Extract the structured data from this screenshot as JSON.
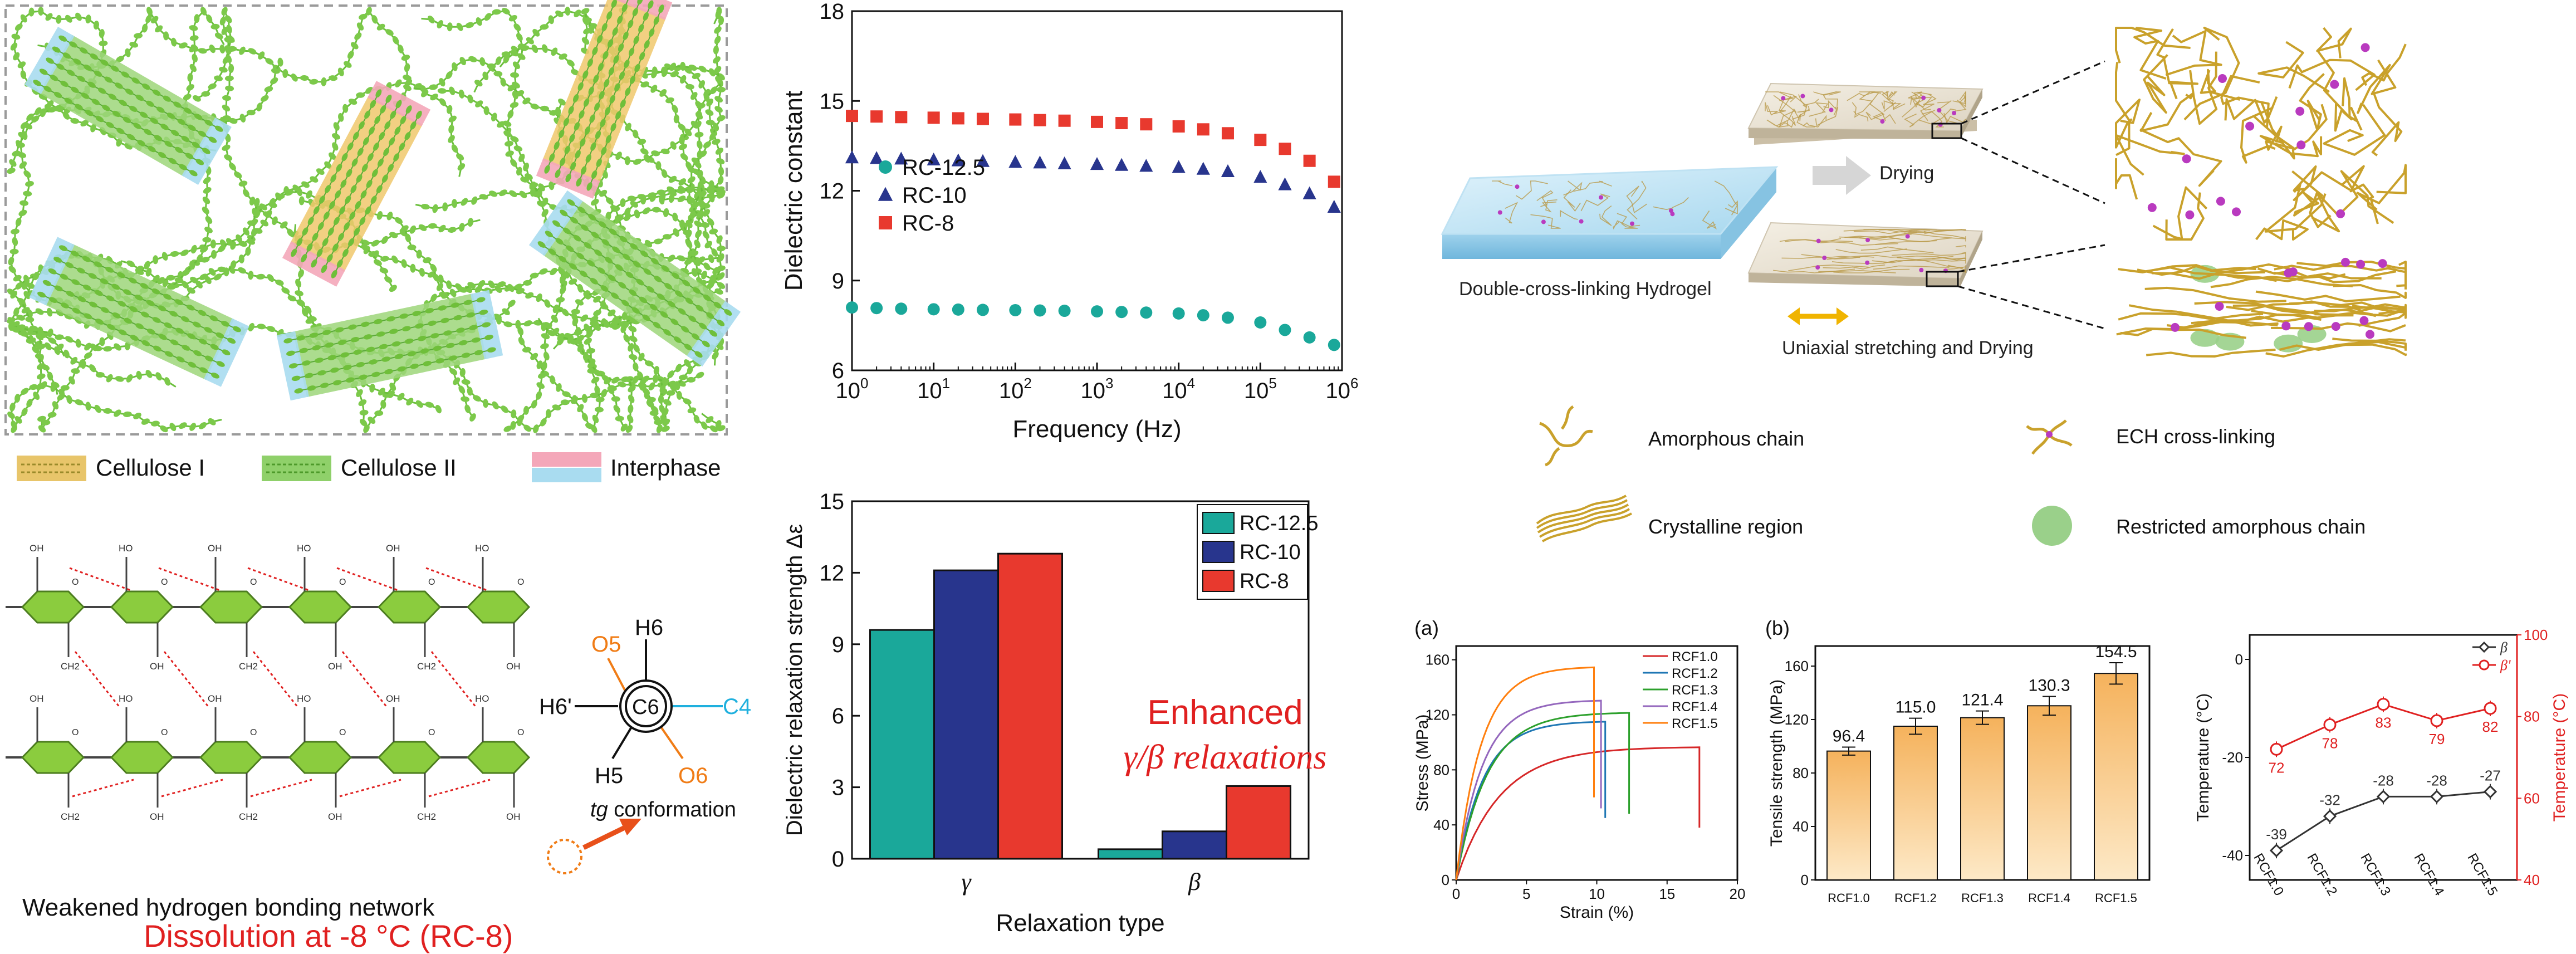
{
  "chains_panel": {
    "legend": [
      {
        "label": "Cellulose I",
        "color": "#e8c56a"
      },
      {
        "label": "Cellulose II",
        "color": "#8fd06a"
      },
      {
        "label": "Interphase",
        "color_top": "#f4a7b9",
        "color_bottom": "#a9dcf0"
      }
    ]
  },
  "hbond_panel": {
    "caption": "Weakened hydrogen bonding network",
    "newman_labels": {
      "top_left": "O5",
      "top_right": "H6",
      "left": "H6'",
      "center": "C6",
      "right": "C4",
      "bottom_left": "H5",
      "bottom_right": "O6"
    },
    "conformation_label": "tg conformation",
    "conformation_label_italic": "tg",
    "dissolution_title": "Dissolution at -8 °C (RC-8)",
    "ring_atoms": {
      "oh": "OH",
      "ho": "HO",
      "ch2": "CH2",
      "o": "O"
    }
  },
  "colors": {
    "teal": "#1aa89a",
    "navy": "#28358d",
    "red": "#e8392e",
    "orange": "#f07c16",
    "cyan": "#1fb0de",
    "gold": "#c9a12b",
    "accent_red": "#e02020"
  },
  "chart_data": [
    {
      "type": "scatter",
      "x_scale": "log",
      "xlabel": "Frequency (Hz)",
      "ylabel": "Dielectric constant",
      "xlim": [
        1,
        1000000
      ],
      "ylim": [
        6,
        18
      ],
      "yticks": [
        6,
        9,
        12,
        15,
        18
      ],
      "xticks": [
        1,
        10,
        100,
        1000,
        10000,
        100000,
        1000000
      ],
      "xtick_labels": [
        "10^0",
        "10^1",
        "10^2",
        "10^3",
        "10^4",
        "10^5",
        "10^6"
      ],
      "legend_position": "center-left",
      "series": [
        {
          "name": "RC-12.5",
          "marker": "circle",
          "color": "#1aa89a",
          "x": [
            1,
            2,
            4,
            10,
            20,
            40,
            100,
            200,
            400,
            1000,
            2000,
            4000,
            10000,
            20000,
            40000,
            100000,
            200000,
            400000,
            800000
          ],
          "y": [
            8.1,
            8.08,
            8.06,
            8.04,
            8.03,
            8.02,
            8.01,
            8.0,
            7.99,
            7.97,
            7.95,
            7.93,
            7.9,
            7.84,
            7.76,
            7.6,
            7.35,
            7.1,
            6.85
          ]
        },
        {
          "name": "RC-10",
          "marker": "triangle",
          "color": "#28358d",
          "x": [
            1,
            2,
            4,
            10,
            20,
            40,
            100,
            200,
            400,
            1000,
            2000,
            4000,
            10000,
            20000,
            40000,
            100000,
            200000,
            400000,
            800000
          ],
          "y": [
            13.1,
            13.08,
            13.06,
            13.03,
            13.0,
            12.98,
            12.95,
            12.93,
            12.9,
            12.88,
            12.85,
            12.82,
            12.78,
            12.72,
            12.64,
            12.45,
            12.2,
            11.9,
            11.45
          ]
        },
        {
          "name": "RC-8",
          "marker": "square",
          "color": "#e8392e",
          "x": [
            1,
            2,
            4,
            10,
            20,
            40,
            100,
            200,
            400,
            1000,
            2000,
            4000,
            10000,
            20000,
            40000,
            100000,
            200000,
            400000,
            800000
          ],
          "y": [
            14.5,
            14.48,
            14.46,
            14.44,
            14.42,
            14.4,
            14.38,
            14.36,
            14.34,
            14.3,
            14.26,
            14.22,
            14.15,
            14.05,
            13.92,
            13.7,
            13.4,
            13.0,
            12.3
          ]
        }
      ]
    },
    {
      "type": "bar",
      "xlabel": "Relaxation type",
      "ylabel": "Dielectric relaxation strength Δε",
      "categories": [
        "γ",
        "β"
      ],
      "ylim": [
        0,
        15
      ],
      "yticks": [
        0,
        3,
        6,
        9,
        12,
        15
      ],
      "legend_position": "top-right",
      "annotation_line1": "Enhanced",
      "annotation_line2": "γ/β relaxations",
      "series": [
        {
          "name": "RC-12.5",
          "color": "#1aa89a",
          "values": [
            9.6,
            0.4
          ]
        },
        {
          "name": "RC-10",
          "color": "#28358d",
          "values": [
            12.1,
            1.15
          ]
        },
        {
          "name": "RC-8",
          "color": "#e8392e",
          "values": [
            12.8,
            3.05
          ]
        }
      ]
    },
    {
      "type": "line",
      "panel_label": "(a)",
      "xlabel": "Strain (%)",
      "ylabel": "Stress (MPa)",
      "xlim": [
        0,
        20
      ],
      "ylim": [
        0,
        170
      ],
      "xticks": [
        0,
        5,
        10,
        15,
        20
      ],
      "yticks": [
        0,
        40,
        80,
        120,
        160
      ],
      "legend_position": "top-right",
      "series": [
        {
          "name": "RCF1.0",
          "color": "#d62728",
          "fracture_strain": 17.3,
          "ultimate_stress": 96.4,
          "end_stress": 38
        },
        {
          "name": "RCF1.2",
          "color": "#1f77b4",
          "fracture_strain": 10.6,
          "ultimate_stress": 115.0,
          "end_stress": 45
        },
        {
          "name": "RCF1.3",
          "color": "#2ca02c",
          "fracture_strain": 12.3,
          "ultimate_stress": 121.4,
          "end_stress": 48
        },
        {
          "name": "RCF1.4",
          "color": "#9467bd",
          "fracture_strain": 10.3,
          "ultimate_stress": 130.3,
          "end_stress": 52
        },
        {
          "name": "RCF1.5",
          "color": "#ff7f0e",
          "fracture_strain": 9.8,
          "ultimate_stress": 154.5,
          "end_stress": 60
        }
      ]
    },
    {
      "type": "bar",
      "panel_label": "(b)",
      "ylabel": "Tensile strength (MPa)",
      "categories": [
        "RCF1.0",
        "RCF1.2",
        "RCF1.3",
        "RCF1.4",
        "RCF1.5"
      ],
      "values": [
        96.4,
        115.0,
        121.4,
        130.3,
        154.5
      ],
      "value_labels": [
        "96.4",
        "115.0",
        "121.4",
        "130.3",
        "154.5"
      ],
      "errors": [
        3,
        6,
        5,
        7,
        8
      ],
      "ylim": [
        0,
        175
      ],
      "yticks": [
        0,
        40,
        80,
        120,
        160
      ]
    },
    {
      "type": "line",
      "ylabel_left": "Temperature (°C)",
      "ylabel_right": "Temperature (°C)",
      "categories": [
        "RCF1.0",
        "RCF1.2",
        "RCF1.3",
        "RCF1.4",
        "RCF1.5"
      ],
      "ylim_left": [
        -45,
        5
      ],
      "yticks_left": [
        -40,
        -20,
        0
      ],
      "ylim_right": [
        40,
        100
      ],
      "yticks_right": [
        40,
        60,
        80,
        100
      ],
      "legend_position": "top-right",
      "series": [
        {
          "name": "β",
          "axis": "left",
          "color": "#333333",
          "marker": "diamond",
          "values": [
            -39,
            -32,
            -28,
            -28,
            -27
          ],
          "labels": [
            "-39",
            "-32",
            "-28",
            "-28",
            "-27"
          ]
        },
        {
          "name": "β'",
          "axis": "right",
          "color": "#e02020",
          "marker": "circle",
          "values": [
            72,
            78,
            83,
            79,
            82
          ],
          "labels": [
            "72",
            "78",
            "83",
            "79",
            "82"
          ]
        }
      ]
    }
  ],
  "process": {
    "hydrogel_label": "Double-cross-linking Hydrogel",
    "drying_label": "Drying",
    "stretch_label": "Uniaxial stretching and Drying",
    "legend": [
      {
        "label": "Amorphous chain",
        "icon": "amorphous-chain-icon"
      },
      {
        "label": "ECH cross-linking",
        "icon": "crosslink-icon"
      },
      {
        "label": "Crystalline region",
        "icon": "crystalline-region-icon"
      },
      {
        "label": "Restricted amorphous chain",
        "icon": "restricted-chain-icon"
      }
    ]
  }
}
